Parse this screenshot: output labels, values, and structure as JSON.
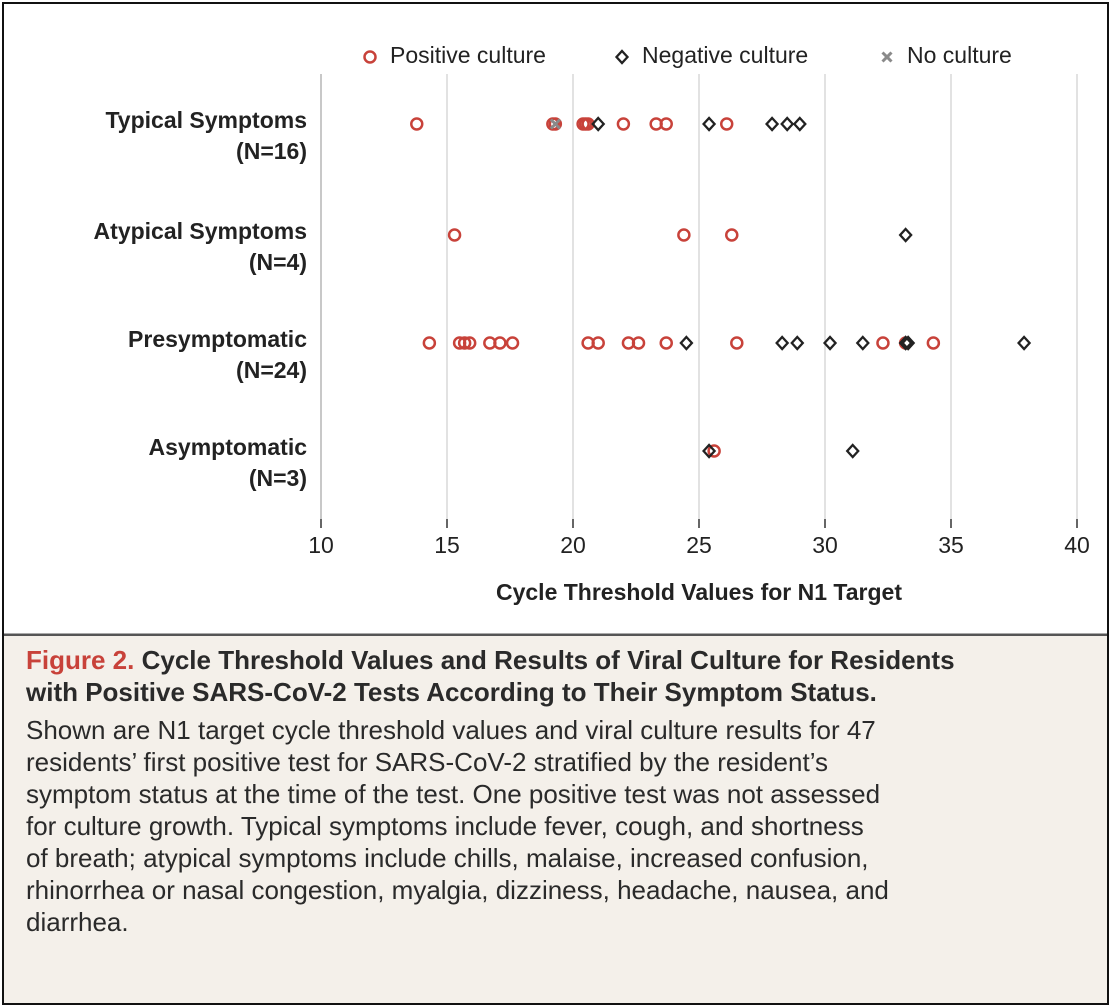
{
  "chart_data": {
    "type": "dot",
    "categories": [
      [
        "Typical Symptoms",
        "(N=16)"
      ],
      [
        "Atypical Symptoms",
        "(N=4)"
      ],
      [
        "Presymptomatic",
        "(N=24)"
      ],
      [
        "Asymptomatic",
        "(N=3)"
      ]
    ],
    "series": [
      {
        "name": "Positive culture",
        "color": "#c8423a",
        "marker": "circle",
        "values": [
          [
            13.8,
            19.2,
            19.3,
            20.4,
            20.5,
            20.6,
            22.0,
            23.3,
            23.7,
            26.1
          ],
          [
            15.3,
            24.4,
            26.3
          ],
          [
            14.3,
            15.5,
            15.7,
            15.9,
            16.7,
            17.1,
            17.6,
            20.6,
            21.0,
            22.2,
            22.6,
            23.7,
            26.5,
            32.3,
            33.2,
            34.3
          ],
          [
            25.6
          ]
        ]
      },
      {
        "name": "Negative culture",
        "color": "#222222",
        "marker": "diamond",
        "values": [
          [
            21.0,
            25.4,
            27.9,
            28.5,
            29.0
          ],
          [
            33.2
          ],
          [
            24.5,
            28.3,
            28.9,
            30.2,
            31.5,
            33.2,
            33.3,
            37.9
          ],
          [
            25.4,
            31.1
          ]
        ]
      },
      {
        "name": "No culture",
        "color": "#8a8a8a",
        "marker": "x",
        "values": [
          [
            19.3
          ],
          [],
          [],
          []
        ]
      }
    ],
    "xlabel": "Cycle Threshold Values for N1 Target",
    "xlim": [
      10,
      40
    ],
    "xticks": [
      10,
      15,
      20,
      25,
      30,
      35,
      40
    ],
    "grid": true
  },
  "caption": {
    "label": "Figure 2.",
    "title_lines": [
      "Cycle Threshold Values and Results of Viral Culture for Residents",
      "with Positive SARS-CoV-2 Tests According to Their Symptom Status."
    ],
    "text_lines": [
      "Shown are N1 target cycle threshold values and viral culture results for 47",
      "residents’ first positive test for SARS-CoV-2 stratified by the resident’s",
      "symptom status at the time of the test. One positive test was not assessed",
      "for culture growth. Typical symptoms include fever, cough, and shortness",
      "of breath; atypical symptoms include chills, malaise, increased confusion,",
      "rhinorrhea or nasal congestion, myalgia, dizziness, headache, nausea, and",
      "diarrhea."
    ]
  }
}
